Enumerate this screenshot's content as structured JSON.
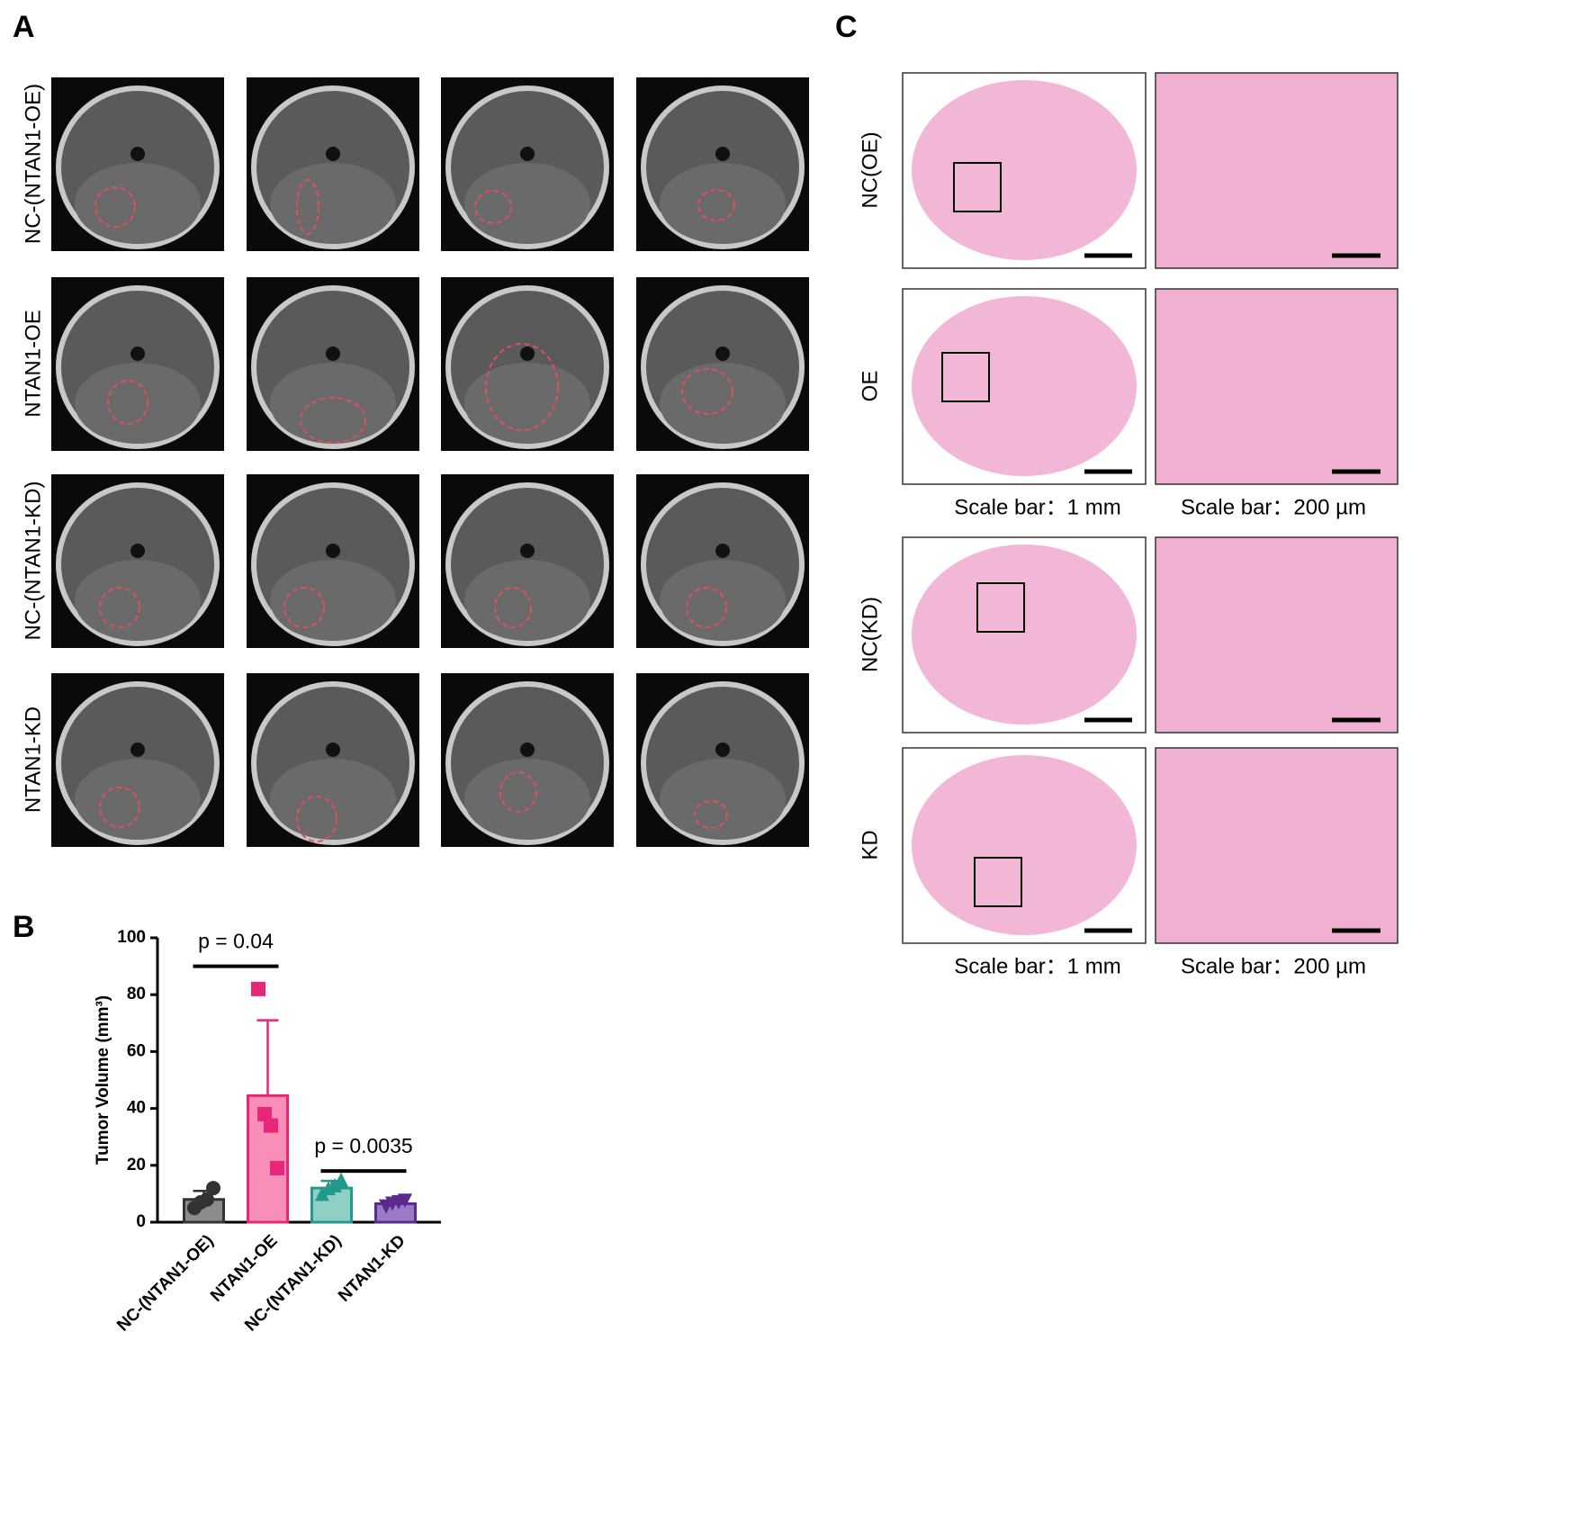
{
  "panels": {
    "a": {
      "label": "A",
      "row_labels": [
        "NC-(NTAN1-OE)",
        "NTAN1-OE",
        "NC-(NTAN1-KD)",
        "NTAN1-KD"
      ]
    },
    "b": {
      "label": "B"
    },
    "c": {
      "label": "C",
      "row_labels": [
        "NC(OE)",
        "OE",
        "NC(KD)",
        "KD"
      ],
      "scale_bars": [
        "Scale bar：1 mm",
        "Scale bar：200 µm",
        "Scale bar：1 mm",
        "Scale bar：200 µm"
      ]
    }
  },
  "chart_data": {
    "type": "bar",
    "y_label": "Tumor Volume (mm³)",
    "categories": [
      "NC-(NTAN1-OE)",
      "NTAN1-OE",
      "NC-(NTAN1-KD)",
      "NTAN1-KD"
    ],
    "values": [
      8,
      44.5,
      12,
      6.5
    ],
    "errors": [
      3,
      26.5,
      2.5,
      1
    ],
    "points": [
      [
        5,
        7,
        8,
        12
      ],
      [
        82,
        38,
        34,
        19
      ],
      [
        10,
        12,
        13,
        15
      ],
      [
        5.5,
        6.5,
        7,
        7.5
      ]
    ],
    "markers": [
      "circle",
      "square",
      "triangle",
      "triangle-down"
    ],
    "colors": [
      "#333333",
      "#e8267a",
      "#23998c",
      "#5a2a8c"
    ],
    "fill_colors": [
      "#8c8c8c",
      "#f78fb8",
      "#8fcfc6",
      "#9a7cc6"
    ],
    "ylim": [
      0,
      100
    ],
    "yticks": [
      0,
      20,
      40,
      60,
      80,
      100
    ],
    "annotations": [
      {
        "text": "p = 0.04",
        "categories": [
          0,
          1
        ],
        "y": 90
      },
      {
        "text": "p = 0.0035",
        "categories": [
          2,
          3
        ],
        "y": 18
      }
    ]
  }
}
